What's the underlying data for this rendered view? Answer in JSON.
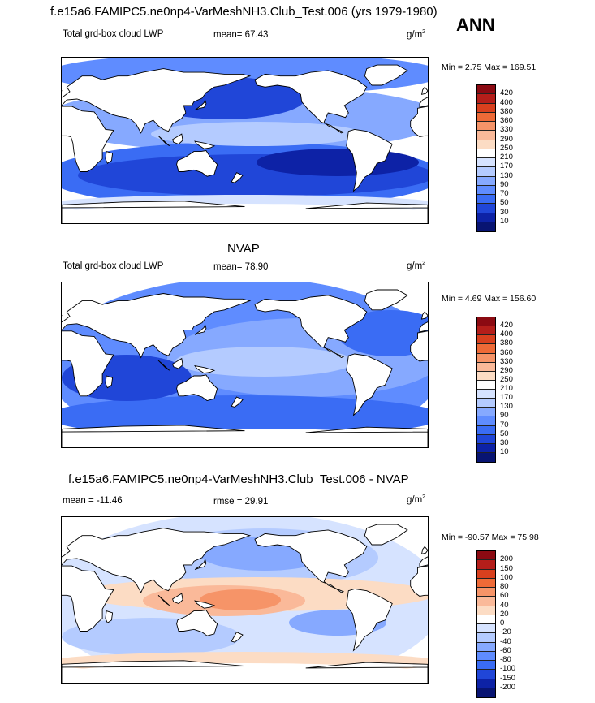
{
  "header": {
    "title": "f.e15a6.FAMIPC5.ne0np4-VarMeshNH3.Club_Test.006 (yrs 1979-1980)",
    "season": "ANN"
  },
  "panels": [
    {
      "subtitle": "",
      "left_label": "Total grd-box cloud LWP",
      "center_label": "mean=  67.43",
      "units_base": "g/m",
      "units_exp": "2",
      "minmax": "Min =   2.75 Max = 169.51",
      "colorbar": {
        "labels": [
          "420",
          "400",
          "380",
          "360",
          "330",
          "290",
          "250",
          "210",
          "170",
          "130",
          "90",
          "70",
          "50",
          "30",
          "10"
        ],
        "colors": [
          "#8b0a12",
          "#b41e1a",
          "#d8401e",
          "#ee6a37",
          "#f69468",
          "#fab999",
          "#fcdcc4",
          "#ffffff",
          "#d6e3ff",
          "#b4cbff",
          "#86a9ff",
          "#5f8cff",
          "#3a6cf4",
          "#2046d8",
          "#0d22a6",
          "#081472"
        ]
      },
      "field": "cloud"
    },
    {
      "subtitle": "NVAP",
      "left_label": "Total grd-box cloud LWP",
      "center_label": "mean=  78.90",
      "units_base": "g/m",
      "units_exp": "2",
      "minmax": "Min =   4.69 Max = 156.60",
      "colorbar": {
        "labels": [
          "420",
          "400",
          "380",
          "360",
          "330",
          "290",
          "250",
          "210",
          "170",
          "130",
          "90",
          "70",
          "50",
          "30",
          "10"
        ],
        "colors": [
          "#8b0a12",
          "#b41e1a",
          "#d8401e",
          "#ee6a37",
          "#f69468",
          "#fab999",
          "#fcdcc4",
          "#ffffff",
          "#d6e3ff",
          "#b4cbff",
          "#86a9ff",
          "#5f8cff",
          "#3a6cf4",
          "#2046d8",
          "#0d22a6",
          "#081472"
        ]
      },
      "field": "nvap"
    },
    {
      "subtitle": "f.e15a6.FAMIPC5.ne0np4-VarMeshNH3.Club_Test.006 - NVAP",
      "left_label": "mean = -11.46",
      "center_label": "rmse =  29.91",
      "units_base": "g/m",
      "units_exp": "2",
      "minmax": "Min = -90.57 Max =  75.98",
      "colorbar": {
        "labels": [
          "200",
          "150",
          "100",
          "80",
          "60",
          "40",
          "20",
          "0",
          "-20",
          "-40",
          "-60",
          "-80",
          "-100",
          "-150",
          "-200"
        ],
        "colors": [
          "#8b0a12",
          "#b41e1a",
          "#d8401e",
          "#ee6a37",
          "#f69468",
          "#fab999",
          "#fcdcc4",
          "#ffffff",
          "#d6e3ff",
          "#b4cbff",
          "#86a9ff",
          "#5f8cff",
          "#3a6cf4",
          "#2046d8",
          "#0d22a6",
          "#081472"
        ]
      },
      "field": "diff"
    }
  ],
  "chart_data": [
    {
      "type": "heatmap",
      "title": "f.e15a6.FAMIPC5.ne0np4-VarMeshNH3.Club_Test.006 (yrs 1979-1980)",
      "subtitle": "Total grd-box cloud LWP",
      "mean": 67.43,
      "min": 2.75,
      "max": 169.51,
      "units": "g/m2",
      "levels": [
        10,
        30,
        50,
        70,
        90,
        130,
        170,
        210,
        250,
        290,
        330,
        360,
        380,
        400,
        420
      ]
    },
    {
      "type": "heatmap",
      "title": "NVAP",
      "subtitle": "Total grd-box cloud LWP",
      "mean": 78.9,
      "min": 4.69,
      "max": 156.6,
      "units": "g/m2",
      "levels": [
        10,
        30,
        50,
        70,
        90,
        130,
        170,
        210,
        250,
        290,
        330,
        360,
        380,
        400,
        420
      ]
    },
    {
      "type": "heatmap",
      "title": "f.e15a6.FAMIPC5.ne0np4-VarMeshNH3.Club_Test.006 - NVAP",
      "mean": -11.46,
      "rmse": 29.91,
      "min": -90.57,
      "max": 75.98,
      "units": "g/m2",
      "levels": [
        -200,
        -150,
        -100,
        -80,
        -60,
        -40,
        -20,
        0,
        20,
        40,
        60,
        80,
        100,
        150,
        200
      ]
    }
  ]
}
